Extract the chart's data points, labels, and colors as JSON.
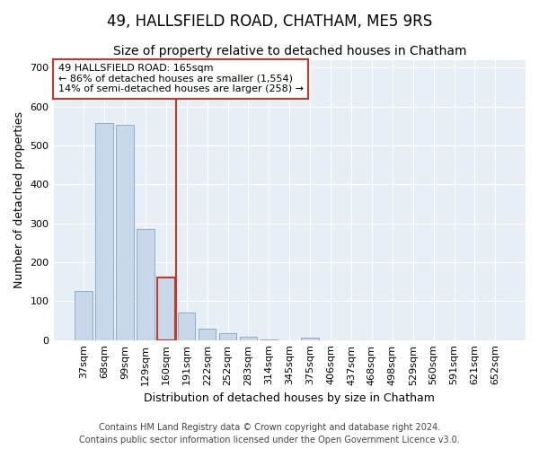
{
  "title": "49, HALLSFIELD ROAD, CHATHAM, ME5 9RS",
  "subtitle": "Size of property relative to detached houses in Chatham",
  "xlabel": "Distribution of detached houses by size in Chatham",
  "ylabel": "Number of detached properties",
  "categories": [
    "37sqm",
    "68sqm",
    "99sqm",
    "129sqm",
    "160sqm",
    "191sqm",
    "222sqm",
    "252sqm",
    "283sqm",
    "314sqm",
    "345sqm",
    "375sqm",
    "406sqm",
    "437sqm",
    "468sqm",
    "498sqm",
    "529sqm",
    "560sqm",
    "591sqm",
    "621sqm",
    "652sqm"
  ],
  "values": [
    127,
    558,
    553,
    285,
    161,
    71,
    30,
    18,
    8,
    2,
    0,
    6,
    0,
    0,
    0,
    0,
    0,
    0,
    0,
    0,
    0
  ],
  "bar_color": "#c8d8ea",
  "bar_edge_color": "#89aec8",
  "highlight_bar_index": 4,
  "highlight_bar_edge_color": "#c0392b",
  "vline_color": "#c0392b",
  "annotation_title": "49 HALLSFIELD ROAD: 165sqm",
  "annotation_line1": "← 86% of detached houses are smaller (1,554)",
  "annotation_line2": "14% of semi-detached houses are larger (258) →",
  "annotation_box_color": "#c0392b",
  "ylim": [
    0,
    720
  ],
  "yticks": [
    0,
    100,
    200,
    300,
    400,
    500,
    600,
    700
  ],
  "plot_bg_color": "#e8eef5",
  "grid_color": "#ffffff",
  "footer_line1": "Contains HM Land Registry data © Crown copyright and database right 2024.",
  "footer_line2": "Contains public sector information licensed under the Open Government Licence v3.0.",
  "title_fontsize": 12,
  "subtitle_fontsize": 10,
  "axis_label_fontsize": 9,
  "tick_fontsize": 8,
  "annotation_fontsize": 8,
  "footer_fontsize": 7
}
